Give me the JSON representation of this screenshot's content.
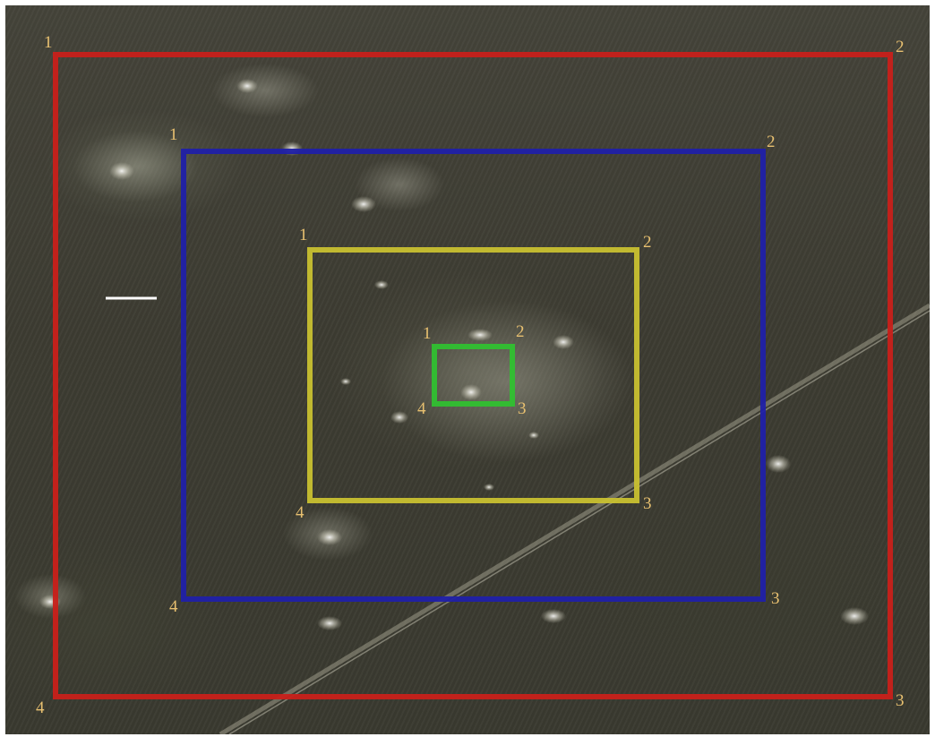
{
  "image": {
    "kind": "aerial-satellite-photo",
    "content": "vegetated terrain with bright spots and a diagonal track"
  },
  "scale_bar": {
    "color": "#ffffff"
  },
  "frames": [
    {
      "id": "outer",
      "color": "#c8201a",
      "corners": [
        "1",
        "2",
        "3",
        "4"
      ]
    },
    {
      "id": "second",
      "color": "#2020a8",
      "corners": [
        "1",
        "2",
        "3",
        "4"
      ]
    },
    {
      "id": "third",
      "color": "#c8c030",
      "corners": [
        "1",
        "2",
        "3",
        "4"
      ]
    },
    {
      "id": "inner",
      "color": "#30c030",
      "corners": [
        "1",
        "2",
        "3",
        "4"
      ]
    }
  ],
  "label_color": "#e8c070"
}
